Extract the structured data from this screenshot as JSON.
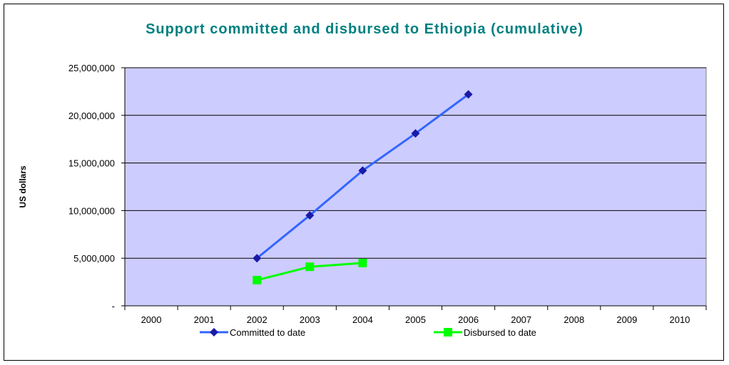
{
  "chart_data": {
    "type": "line",
    "title": "Support committed and disbursed to Ethiopia (cumulative)",
    "xlabel": "",
    "ylabel": "US dollars",
    "categories": [
      "2000",
      "2001",
      "2002",
      "2003",
      "2004",
      "2005",
      "2006",
      "2007",
      "2008",
      "2009",
      "2010"
    ],
    "ylim": [
      0,
      25000000
    ],
    "yticks": [
      0,
      5000000,
      10000000,
      15000000,
      20000000,
      25000000
    ],
    "ytick_labels": [
      "-",
      "5,000,000",
      "10,000,000",
      "15,000,000",
      "20,000,000",
      "25,000,000"
    ],
    "grid": true,
    "legend_position": "bottom",
    "plot_background": "#ccccff",
    "series": [
      {
        "name": "Committed to date",
        "color": "#3366ff",
        "marker": "diamond",
        "marker_color": "#1a1aa8",
        "values": [
          null,
          null,
          5000000,
          9500000,
          14200000,
          18100000,
          22200000,
          null,
          null,
          null,
          null
        ]
      },
      {
        "name": "Disbursed to date",
        "color": "#00ff00",
        "marker": "square",
        "marker_color": "#00ff00",
        "values": [
          null,
          null,
          2700000,
          4100000,
          4500000,
          null,
          null,
          null,
          null,
          null,
          null
        ]
      }
    ]
  }
}
